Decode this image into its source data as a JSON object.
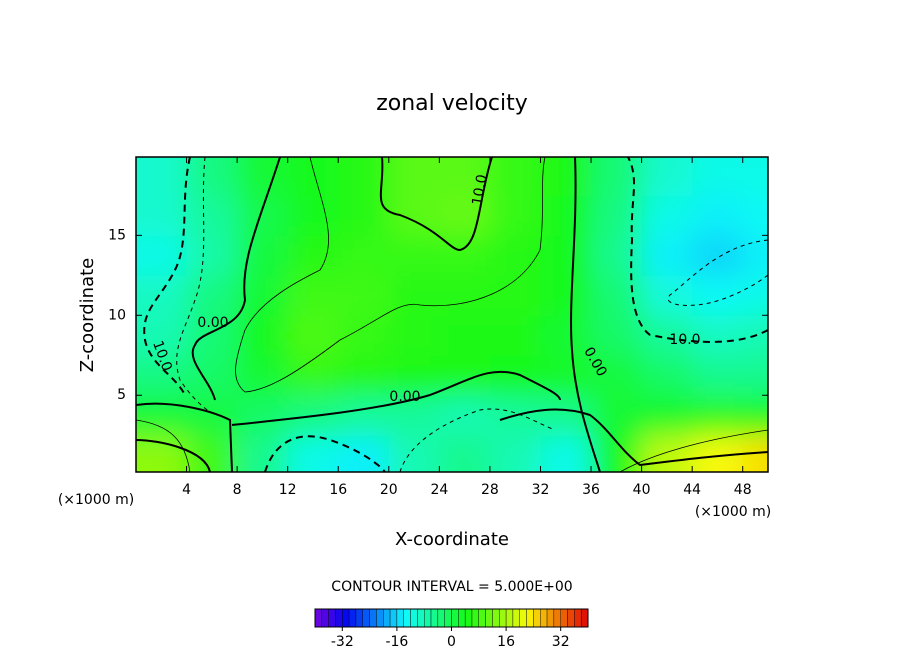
{
  "chart_data": {
    "type": "contour",
    "title": "zonal velocity",
    "x_label": "X-coordinate",
    "y_label": "Z-coordinate",
    "x_unit_label": "(×1000 m)",
    "xlim": [
      0,
      50
    ],
    "ylim": [
      0.2,
      19.9
    ],
    "xticks": [
      4,
      8,
      12,
      16,
      20,
      24,
      28,
      32,
      36,
      40,
      44,
      48
    ],
    "yticks": [
      5,
      10,
      15
    ],
    "x": [
      2,
      6,
      10,
      14,
      18,
      22,
      26,
      30,
      34,
      38,
      42,
      46,
      50
    ],
    "y": [
      1.25,
      3.75,
      6.25,
      8.75,
      11.25,
      13.75,
      16.25,
      18.75
    ],
    "z": [
      [
        14,
        8,
        -5,
        -12,
        -14,
        -8,
        -5,
        -8,
        -12,
        4,
        18,
        22,
        24
      ],
      [
        2,
        1,
        -2,
        -4,
        -6,
        -6,
        -8,
        -6,
        -5,
        2,
        3,
        6,
        5
      ],
      [
        -4,
        -2,
        2,
        7,
        6,
        5,
        5,
        4,
        3,
        1,
        -2,
        -5,
        -5
      ],
      [
        -8,
        -3,
        4,
        9,
        7,
        6,
        5,
        5,
        2,
        -2,
        -6,
        -9,
        -8
      ],
      [
        -9,
        -4,
        2,
        8,
        8,
        6,
        6,
        6,
        4,
        -3,
        -11,
        -13,
        -12
      ],
      [
        -12,
        -7,
        1,
        6,
        7,
        7,
        7,
        6,
        4,
        -5,
        -14,
        -16,
        -14
      ],
      [
        -10,
        -6,
        0,
        4,
        6,
        10,
        11,
        7,
        4,
        -4,
        -12,
        -14,
        -13
      ],
      [
        -10,
        -4,
        2,
        4,
        6,
        10,
        10,
        7,
        5,
        -3,
        -10,
        -12,
        -12
      ]
    ],
    "contour_labels": [
      "0.00",
      "10.0"
    ],
    "contour_interval_label": "CONTOUR INTERVAL = 5.000E+00",
    "colorbar": {
      "clim": [
        -40,
        40
      ],
      "ticks": [
        -32,
        -16,
        0,
        16,
        32
      ]
    }
  }
}
